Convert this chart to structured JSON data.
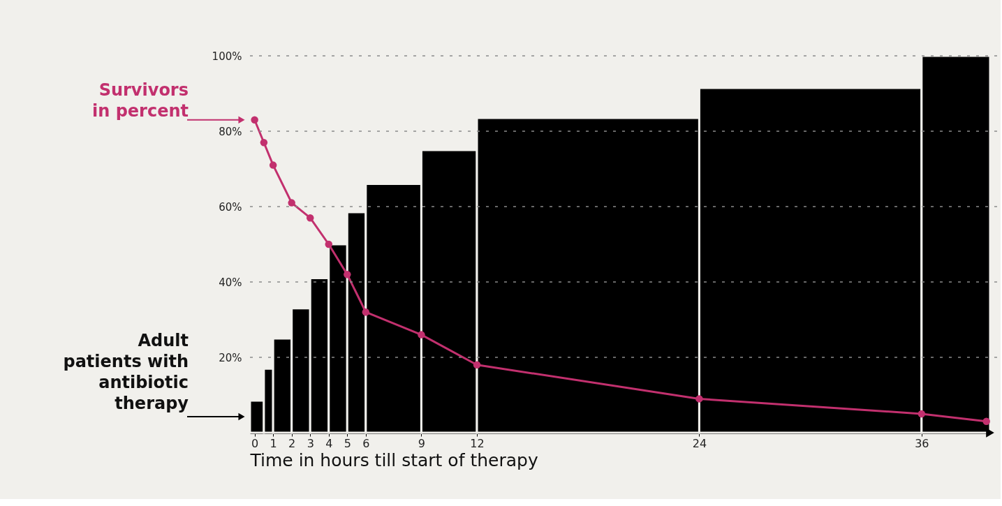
{
  "chart_data": {
    "type": "histogram",
    "xlabel": "Time in hours till start of therapy",
    "xlim": [
      -0.25,
      39.7
    ],
    "xticks": [
      0,
      1,
      2,
      3,
      4,
      5,
      6,
      9,
      12,
      24,
      36
    ],
    "ylim": [
      0,
      100
    ],
    "yticks": [
      {
        "value": 20,
        "label": "20%"
      },
      {
        "value": 40,
        "label": "40%"
      },
      {
        "value": 60,
        "label": "60%"
      },
      {
        "value": 80,
        "label": "80%"
      },
      {
        "value": 100,
        "label": "100%"
      }
    ],
    "grid": "y",
    "series": [
      {
        "name": "Adult patients with antibiotic therapy",
        "color": "#000000",
        "bins": [
          -0.25,
          0.5,
          1,
          2,
          3,
          4,
          5,
          6,
          9,
          12,
          24,
          36,
          39.7
        ],
        "values": [
          8.5,
          17,
          25,
          33,
          41,
          50,
          58.5,
          66,
          75,
          83.5,
          91.5,
          100
        ]
      },
      {
        "type": "line",
        "name": "Survivors in percent",
        "color": "#c2306e",
        "marker": "circle",
        "x": [
          0,
          0.5,
          1,
          2,
          3,
          4,
          5,
          6,
          9,
          12,
          24,
          36,
          39.5
        ],
        "values": [
          83,
          77,
          71,
          61,
          57,
          50,
          42,
          32,
          26,
          18,
          9,
          5,
          3
        ]
      }
    ]
  }
}
